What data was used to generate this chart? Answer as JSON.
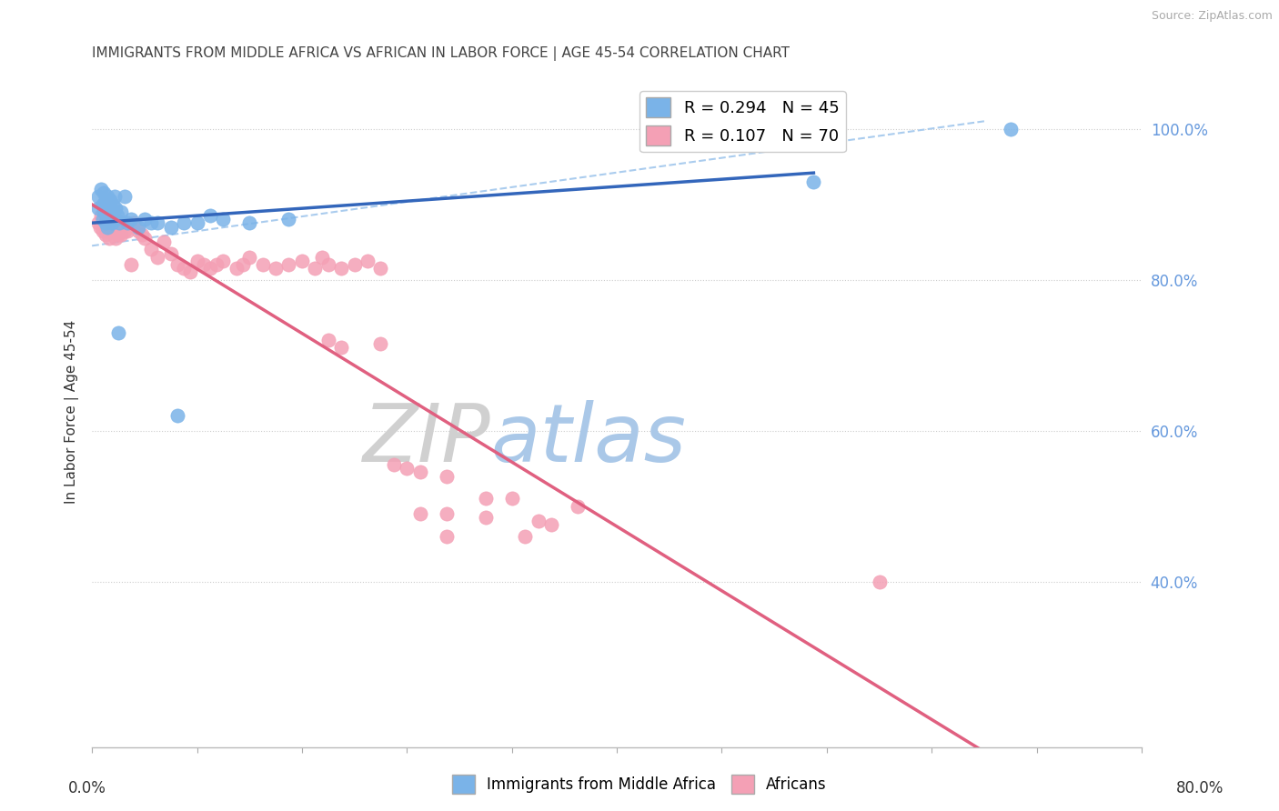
{
  "title": "IMMIGRANTS FROM MIDDLE AFRICA VS AFRICAN IN LABOR FORCE | AGE 45-54 CORRELATION CHART",
  "source": "Source: ZipAtlas.com",
  "ylabel_label": "In Labor Force | Age 45-54",
  "right_yticks": [
    40.0,
    60.0,
    80.0,
    100.0
  ],
  "xmin": 0.0,
  "xmax": 0.8,
  "ymin": 0.18,
  "ymax": 1.07,
  "legend_blue_r": "R = 0.294",
  "legend_blue_n": "N = 45",
  "legend_pink_r": "R = 0.107",
  "legend_pink_n": "N = 70",
  "blue_color": "#7ab3e8",
  "pink_color": "#f4a0b5",
  "blue_line_color": "#3366bb",
  "pink_line_color": "#e06080",
  "dashed_line_color": "#aaccee",
  "watermark_zip": "ZIP",
  "watermark_atlas": "atlas",
  "blue_scatter_x": [
    0.005,
    0.005,
    0.007,
    0.008,
    0.008,
    0.009,
    0.009,
    0.01,
    0.01,
    0.011,
    0.011,
    0.012,
    0.012,
    0.013,
    0.013,
    0.014,
    0.014,
    0.015,
    0.015,
    0.016,
    0.016,
    0.017,
    0.018,
    0.018,
    0.019,
    0.02,
    0.021,
    0.022,
    0.025,
    0.027,
    0.03,
    0.035,
    0.04,
    0.045,
    0.05,
    0.06,
    0.065,
    0.07,
    0.08,
    0.09,
    0.1,
    0.12,
    0.15,
    0.55,
    0.7
  ],
  "blue_scatter_y": [
    0.895,
    0.91,
    0.92,
    0.88,
    0.9,
    0.89,
    0.915,
    0.875,
    0.905,
    0.885,
    0.895,
    0.91,
    0.87,
    0.9,
    0.88,
    0.895,
    0.905,
    0.885,
    0.875,
    0.9,
    0.89,
    0.91,
    0.88,
    0.895,
    0.885,
    0.73,
    0.875,
    0.89,
    0.91,
    0.875,
    0.88,
    0.87,
    0.88,
    0.875,
    0.875,
    0.87,
    0.62,
    0.875,
    0.875,
    0.885,
    0.88,
    0.875,
    0.88,
    0.93,
    1.0
  ],
  "pink_scatter_x": [
    0.005,
    0.006,
    0.007,
    0.008,
    0.009,
    0.01,
    0.01,
    0.011,
    0.012,
    0.012,
    0.013,
    0.014,
    0.015,
    0.016,
    0.017,
    0.018,
    0.02,
    0.021,
    0.022,
    0.025,
    0.027,
    0.03,
    0.032,
    0.035,
    0.038,
    0.04,
    0.045,
    0.05,
    0.055,
    0.06,
    0.065,
    0.07,
    0.075,
    0.08,
    0.085,
    0.09,
    0.095,
    0.1,
    0.11,
    0.115,
    0.12,
    0.13,
    0.14,
    0.15,
    0.16,
    0.17,
    0.175,
    0.18,
    0.19,
    0.2,
    0.21,
    0.22,
    0.23,
    0.24,
    0.25,
    0.27,
    0.3,
    0.32,
    0.34,
    0.37,
    0.18,
    0.19,
    0.22,
    0.25,
    0.27,
    0.3,
    0.6,
    0.27,
    0.33,
    0.35
  ],
  "pink_scatter_y": [
    0.875,
    0.87,
    0.885,
    0.865,
    0.875,
    0.88,
    0.86,
    0.87,
    0.865,
    0.875,
    0.855,
    0.87,
    0.875,
    0.865,
    0.87,
    0.855,
    0.86,
    0.87,
    0.86,
    0.865,
    0.865,
    0.82,
    0.875,
    0.865,
    0.86,
    0.855,
    0.84,
    0.83,
    0.85,
    0.835,
    0.82,
    0.815,
    0.81,
    0.825,
    0.82,
    0.815,
    0.82,
    0.825,
    0.815,
    0.82,
    0.83,
    0.82,
    0.815,
    0.82,
    0.825,
    0.815,
    0.83,
    0.82,
    0.815,
    0.82,
    0.825,
    0.815,
    0.555,
    0.55,
    0.545,
    0.54,
    0.51,
    0.51,
    0.48,
    0.5,
    0.72,
    0.71,
    0.715,
    0.49,
    0.49,
    0.485,
    0.4,
    0.46,
    0.46,
    0.475
  ]
}
